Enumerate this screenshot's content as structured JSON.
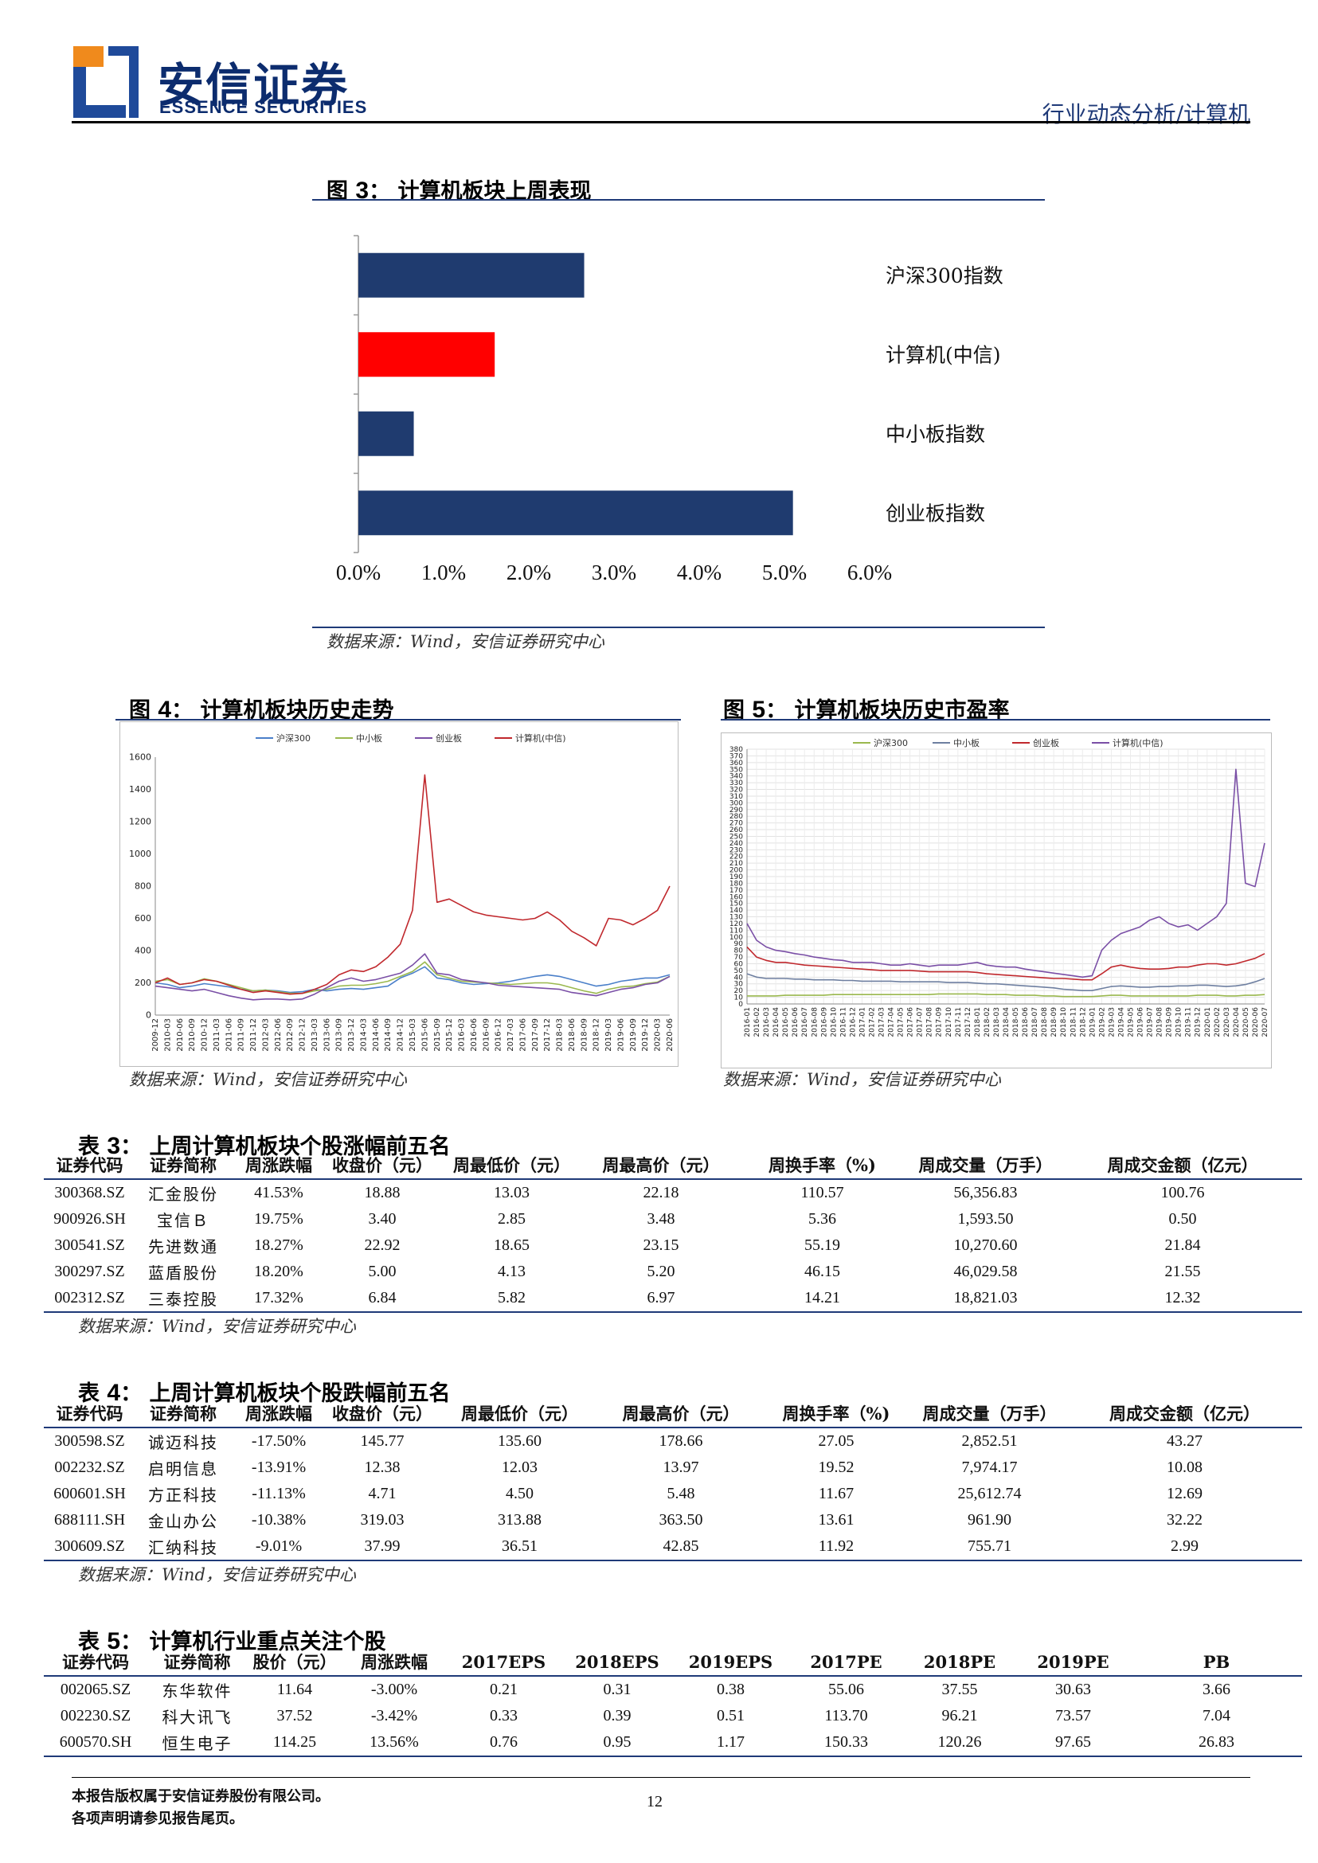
{
  "header": {
    "brand_cn": "安信证券",
    "brand_en": "ESSENCE SECURITIES",
    "category": "行业动态分析/计算机"
  },
  "fig3": {
    "label": "图",
    "num": "3",
    "title": "计算机板块上周表现",
    "source": "数据来源：Wind，安信证券研究中心",
    "chart_data": {
      "type": "bar",
      "orientation": "horizontal",
      "categories": [
        "沪深300指数",
        "计算机(中信)",
        "中小板指数",
        "创业板指数"
      ],
      "values": [
        2.65,
        1.6,
        0.65,
        5.1
      ],
      "colors": [
        "#1f3b6f",
        "#ff0000",
        "#1f3b6f",
        "#1f3b6f"
      ],
      "xticks": [
        "0.0%",
        "1.0%",
        "2.0%",
        "3.0%",
        "4.0%",
        "5.0%",
        "6.0%"
      ],
      "xlim": [
        0,
        6
      ]
    }
  },
  "fig4": {
    "label": "图",
    "num": "4",
    "title": "计算机板块历史走势",
    "source": "数据来源：Wind，安信证券研究中心",
    "chart_data": {
      "type": "line",
      "legend": [
        "沪深300",
        "中小板",
        "创业板",
        "计算机(中信)"
      ],
      "colors": [
        "#4a7fc9",
        "#9ab84e",
        "#7a4fa6",
        "#c0282d"
      ],
      "ylim": [
        0,
        1600
      ],
      "yticks": [
        "0",
        "200",
        "400",
        "600",
        "800",
        "1000",
        "1200",
        "1400",
        "1600"
      ],
      "xticks": [
        "2009-12",
        "2010-03",
        "2010-06",
        "2010-09",
        "2010-12",
        "2011-03",
        "2011-06",
        "2011-09",
        "2011-12",
        "2012-03",
        "2012-06",
        "2012-09",
        "2012-12",
        "2013-03",
        "2013-06",
        "2013-09",
        "2013-12",
        "2014-03",
        "2014-06",
        "2014-09",
        "2014-12",
        "2015-03",
        "2015-06",
        "2015-09",
        "2015-12",
        "2016-03",
        "2016-06",
        "2016-09",
        "2016-12",
        "2017-03",
        "2017-06",
        "2017-09",
        "2017-12",
        "2018-03",
        "2018-06",
        "2018-09",
        "2018-12",
        "2019-03",
        "2019-06",
        "2019-09",
        "2019-12",
        "2020-03",
        "2020-06"
      ],
      "series": [
        {
          "name": "沪深300",
          "values": [
            200,
            190,
            170,
            180,
            195,
            185,
            175,
            160,
            150,
            155,
            150,
            140,
            145,
            160,
            150,
            160,
            165,
            160,
            170,
            180,
            230,
            260,
            300,
            230,
            220,
            200,
            190,
            195,
            200,
            210,
            225,
            240,
            250,
            240,
            220,
            200,
            180,
            190,
            210,
            220,
            230,
            230,
            250
          ]
        },
        {
          "name": "中小板",
          "values": [
            210,
            220,
            190,
            200,
            225,
            210,
            190,
            170,
            150,
            155,
            145,
            135,
            135,
            150,
            160,
            180,
            185,
            185,
            195,
            210,
            240,
            270,
            330,
            250,
            230,
            210,
            205,
            200,
            195,
            190,
            195,
            200,
            200,
            190,
            170,
            150,
            135,
            160,
            175,
            180,
            195,
            205,
            240
          ]
        },
        {
          "name": "创业板",
          "values": [
            180,
            170,
            160,
            150,
            160,
            140,
            120,
            105,
            95,
            100,
            100,
            95,
            100,
            130,
            170,
            210,
            230,
            210,
            220,
            240,
            260,
            310,
            380,
            260,
            250,
            220,
            210,
            200,
            185,
            180,
            175,
            170,
            165,
            160,
            140,
            130,
            120,
            140,
            160,
            170,
            190,
            200,
            240
          ]
        },
        {
          "name": "计算机(中信)",
          "values": [
            200,
            230,
            190,
            200,
            220,
            210,
            185,
            160,
            140,
            150,
            140,
            130,
            135,
            160,
            190,
            250,
            280,
            270,
            300,
            360,
            440,
            650,
            1490,
            700,
            720,
            680,
            640,
            620,
            610,
            600,
            590,
            600,
            640,
            590,
            520,
            480,
            430,
            600,
            590,
            560,
            600,
            650,
            800
          ]
        }
      ]
    }
  },
  "fig5": {
    "label": "图",
    "num": "5",
    "title": "计算机板块历史市盈率",
    "source": "数据来源：Wind，安信证券研究中心",
    "chart_data": {
      "type": "line",
      "legend": [
        "沪深300",
        "中小板",
        "创业板",
        "计算机(中信)"
      ],
      "colors": [
        "#9ab84e",
        "#6e7fa0",
        "#c0282d",
        "#7a4fa6"
      ],
      "ylim": [
        0,
        380
      ],
      "yticks": [
        "0",
        "10",
        "20",
        "30",
        "40",
        "50",
        "60",
        "70",
        "80",
        "90",
        "100",
        "110",
        "120",
        "130",
        "140",
        "150",
        "160",
        "170",
        "180",
        "190",
        "200",
        "210",
        "220",
        "230",
        "240",
        "250",
        "260",
        "270",
        "280",
        "290",
        "300",
        "310",
        "320",
        "330",
        "340",
        "350",
        "360",
        "370",
        "380"
      ],
      "xticks": [
        "2016-01",
        "2016-02",
        "2016-03",
        "2016-04",
        "2016-05",
        "2016-06",
        "2016-07",
        "2016-08",
        "2016-09",
        "2016-10",
        "2016-11",
        "2016-12",
        "2017-01",
        "2017-02",
        "2017-03",
        "2017-04",
        "2017-05",
        "2017-06",
        "2017-07",
        "2017-08",
        "2017-09",
        "2017-10",
        "2017-11",
        "2017-12",
        "2018-01",
        "2018-02",
        "2018-03",
        "2018-04",
        "2018-05",
        "2018-06",
        "2018-07",
        "2018-08",
        "2018-09",
        "2018-10",
        "2018-11",
        "2018-12",
        "2019-01",
        "2019-02",
        "2019-03",
        "2019-04",
        "2019-05",
        "2019-06",
        "2019-07",
        "2019-08",
        "2019-09",
        "2019-10",
        "2019-11",
        "2019-12",
        "2020-01",
        "2020-02",
        "2020-03",
        "2020-04",
        "2020-05",
        "2020-06",
        "2020-07"
      ],
      "series": [
        {
          "name": "沪深300",
          "values": [
            12,
            12,
            12,
            12,
            13,
            13,
            13,
            13,
            13,
            14,
            14,
            14,
            14,
            14,
            14,
            14,
            14,
            14,
            14,
            14,
            15,
            15,
            15,
            15,
            15,
            14,
            14,
            14,
            13,
            13,
            13,
            12,
            12,
            11,
            11,
            11,
            11,
            12,
            13,
            13,
            12,
            12,
            12,
            12,
            12,
            12,
            12,
            13,
            13,
            13,
            12,
            12,
            13,
            13,
            14
          ]
        },
        {
          "name": "中小板",
          "values": [
            45,
            40,
            38,
            38,
            38,
            37,
            37,
            36,
            36,
            36,
            35,
            35,
            34,
            34,
            34,
            34,
            33,
            33,
            33,
            33,
            33,
            32,
            32,
            32,
            31,
            30,
            30,
            29,
            28,
            27,
            26,
            25,
            24,
            22,
            21,
            20,
            20,
            23,
            26,
            27,
            26,
            25,
            25,
            26,
            26,
            27,
            27,
            28,
            28,
            27,
            26,
            27,
            29,
            33,
            38
          ]
        },
        {
          "name": "创业板",
          "values": [
            85,
            70,
            65,
            62,
            62,
            60,
            58,
            57,
            56,
            55,
            54,
            53,
            52,
            51,
            50,
            50,
            50,
            50,
            49,
            48,
            48,
            48,
            48,
            48,
            47,
            45,
            44,
            43,
            42,
            41,
            40,
            39,
            38,
            38,
            37,
            36,
            36,
            45,
            55,
            58,
            55,
            53,
            52,
            52,
            53,
            55,
            55,
            58,
            60,
            60,
            58,
            60,
            64,
            68,
            75
          ]
        },
        {
          "name": "计算机(中信)",
          "values": [
            120,
            95,
            85,
            80,
            78,
            75,
            73,
            70,
            68,
            66,
            65,
            62,
            62,
            62,
            60,
            58,
            58,
            60,
            58,
            56,
            58,
            58,
            58,
            60,
            62,
            58,
            56,
            55,
            55,
            52,
            50,
            48,
            46,
            44,
            42,
            40,
            42,
            80,
            95,
            105,
            110,
            115,
            125,
            130,
            120,
            115,
            118,
            110,
            120,
            130,
            150,
            350,
            180,
            175,
            240
          ]
        }
      ]
    }
  },
  "table3": {
    "label": "表",
    "num": "3",
    "title": "上周计算机板块个股涨幅前五名",
    "headers": [
      "证券代码",
      "证券简称",
      "周涨跌幅",
      "收盘价（元）",
      "周最低价（元）",
      "周最高价（元）",
      "周换手率（%)",
      "周成交量（万手）",
      "周成交金额（亿元）"
    ],
    "rows": [
      [
        "300368.SZ",
        "汇金股份",
        "41.53%",
        "18.88",
        "13.03",
        "22.18",
        "110.57",
        "56,356.83",
        "100.76"
      ],
      [
        "900926.SH",
        "宝信Ｂ",
        "19.75%",
        "3.40",
        "2.85",
        "3.48",
        "5.36",
        "1,593.50",
        "0.50"
      ],
      [
        "300541.SZ",
        "先进数通",
        "18.27%",
        "22.92",
        "18.65",
        "23.15",
        "55.19",
        "10,270.60",
        "21.84"
      ],
      [
        "300297.SZ",
        "蓝盾股份",
        "18.20%",
        "5.00",
        "4.13",
        "5.20",
        "46.15",
        "46,029.58",
        "21.55"
      ],
      [
        "002312.SZ",
        "三泰控股",
        "17.32%",
        "6.84",
        "5.82",
        "6.97",
        "14.21",
        "18,821.03",
        "12.32"
      ]
    ],
    "source": "数据来源：Wind，安信证券研究中心"
  },
  "table4": {
    "label": "表",
    "num": "4",
    "title": "上周计算机板块个股跌幅前五名",
    "headers": [
      "证券代码",
      "证券简称",
      "周涨跌幅",
      "收盘价（元）",
      "周最低价（元）",
      "周最高价（元）",
      "周换手率（%)",
      "周成交量（万手）",
      "周成交金额（亿元）"
    ],
    "rows": [
      [
        "300598.SZ",
        "诚迈科技",
        "-17.50%",
        "145.77",
        "135.60",
        "178.66",
        "27.05",
        "2,852.51",
        "43.27"
      ],
      [
        "002232.SZ",
        "启明信息",
        "-13.91%",
        "12.38",
        "12.03",
        "13.97",
        "19.52",
        "7,974.17",
        "10.08"
      ],
      [
        "600601.SH",
        "方正科技",
        "-11.13%",
        "4.71",
        "4.50",
        "5.48",
        "11.67",
        "25,612.74",
        "12.69"
      ],
      [
        "688111.SH",
        "金山办公",
        "-10.38%",
        "319.03",
        "313.88",
        "363.50",
        "13.61",
        "961.90",
        "32.22"
      ],
      [
        "300609.SZ",
        "汇纳科技",
        "-9.01%",
        "37.99",
        "36.51",
        "42.85",
        "11.92",
        "755.71",
        "2.99"
      ]
    ],
    "source": "数据来源：Wind，安信证券研究中心"
  },
  "table5": {
    "label": "表",
    "num": "5",
    "title": "计算机行业重点关注个股",
    "headers": [
      "证券代码",
      "证券简称",
      "股价（元）",
      "周涨跌幅",
      "2017EPS",
      "2018EPS",
      "2019EPS",
      "2017PE",
      "2018PE",
      "2019PE",
      "PB"
    ],
    "rows": [
      [
        "002065.SZ",
        "东华软件",
        "11.64",
        "-3.00%",
        "0.21",
        "0.31",
        "0.38",
        "55.06",
        "37.55",
        "30.63",
        "3.66"
      ],
      [
        "002230.SZ",
        "科大讯飞",
        "37.52",
        "-3.42%",
        "0.33",
        "0.39",
        "0.51",
        "113.70",
        "96.21",
        "73.57",
        "7.04"
      ],
      [
        "600570.SH",
        "恒生电子",
        "114.25",
        "13.56%",
        "0.76",
        "0.95",
        "1.17",
        "150.33",
        "120.26",
        "97.65",
        "26.83"
      ]
    ]
  },
  "footer": {
    "line1": "本报告版权属于安信证券股份有限公司。",
    "line2": "各项声明请参见报告尾页。",
    "page": "12"
  }
}
